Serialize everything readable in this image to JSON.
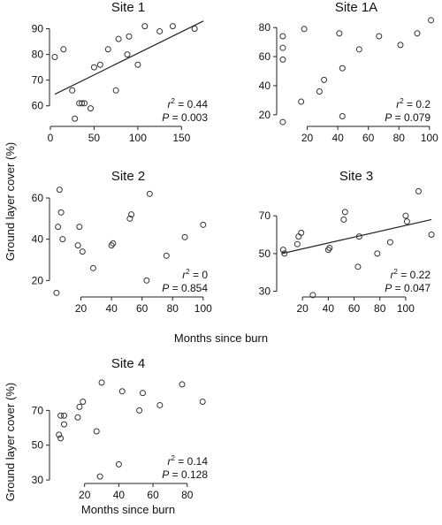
{
  "figure": {
    "xlabel_shared": "Months since burn",
    "xlabel_site4": "Months since burn",
    "ylabel_top": "Ground layer cover (%)",
    "ylabel_bottom": "Ground layer cover (%)"
  },
  "chart_data": [
    {
      "type": "scatter",
      "title": "Site 1",
      "xlim": [
        0,
        180
      ],
      "ylim": [
        52,
        95
      ],
      "xticks": [
        "0",
        "50",
        "100",
        "150"
      ],
      "xtick_values": [
        0,
        50,
        100,
        150
      ],
      "yticks": [
        "60",
        "70",
        "80",
        "90"
      ],
      "ytick_values": [
        60,
        70,
        80,
        90
      ],
      "r2_label": "r",
      "r2_sup": "2",
      "r2_value": " = 0.44",
      "p_label": "P",
      "p_value": " = 0.003",
      "trendline": true,
      "fit": [
        [
          5,
          64.5
        ],
        [
          175,
          93
        ]
      ],
      "points": [
        [
          5,
          79
        ],
        [
          15,
          82
        ],
        [
          25,
          66
        ],
        [
          28,
          55
        ],
        [
          33,
          61
        ],
        [
          36,
          61
        ],
        [
          39,
          61
        ],
        [
          46,
          59
        ],
        [
          50,
          75
        ],
        [
          57,
          76
        ],
        [
          66,
          82
        ],
        [
          75,
          66
        ],
        [
          78,
          86
        ],
        [
          88,
          80
        ],
        [
          90,
          87
        ],
        [
          100,
          76
        ],
        [
          108,
          91
        ],
        [
          125,
          89
        ],
        [
          140,
          91
        ],
        [
          165,
          90
        ]
      ]
    },
    {
      "type": "scatter",
      "title": "Site 1A",
      "xlim": [
        0,
        103
      ],
      "ylim": [
        12,
        88
      ],
      "xticks": [
        "20",
        "40",
        "60",
        "80",
        "100"
      ],
      "xtick_values": [
        20,
        40,
        60,
        80,
        100
      ],
      "yticks": [
        "20",
        "40",
        "60",
        "80"
      ],
      "ytick_values": [
        20,
        40,
        60,
        80
      ],
      "r2_label": "r",
      "r2_sup": "2",
      "r2_value": " = 0.2",
      "p_label": "P",
      "p_value": " = 0.079",
      "trendline": false,
      "points": [
        [
          4,
          74
        ],
        [
          4,
          66
        ],
        [
          4,
          58
        ],
        [
          4,
          15
        ],
        [
          16,
          29
        ],
        [
          18,
          79
        ],
        [
          28,
          36
        ],
        [
          31,
          44
        ],
        [
          41,
          76
        ],
        [
          43,
          19
        ],
        [
          43,
          52
        ],
        [
          54,
          65
        ],
        [
          67,
          74
        ],
        [
          81,
          68
        ],
        [
          92,
          76
        ],
        [
          101,
          85
        ]
      ]
    },
    {
      "type": "scatter",
      "title": "Site 2",
      "xlim": [
        0,
        103
      ],
      "ylim": [
        12,
        66
      ],
      "xticks": [
        "20",
        "40",
        "60",
        "80",
        "100"
      ],
      "xtick_values": [
        20,
        40,
        60,
        80,
        100
      ],
      "yticks": [
        "20",
        "40",
        "60"
      ],
      "ytick_values": [
        20,
        40,
        60
      ],
      "r2_label": "r",
      "r2_sup": "2",
      "r2_value": " = 0",
      "p_label": "P",
      "p_value": " = 0.854",
      "trendline": false,
      "points": [
        [
          4,
          14
        ],
        [
          5,
          46
        ],
        [
          6,
          64
        ],
        [
          7,
          53
        ],
        [
          8,
          40
        ],
        [
          18,
          37
        ],
        [
          19,
          46
        ],
        [
          21,
          34
        ],
        [
          28,
          26
        ],
        [
          40,
          37
        ],
        [
          41,
          38
        ],
        [
          52,
          50
        ],
        [
          53,
          52
        ],
        [
          63,
          20
        ],
        [
          65,
          62
        ],
        [
          76,
          32
        ],
        [
          88,
          41
        ],
        [
          100,
          47
        ]
      ]
    },
    {
      "type": "scatter",
      "title": "Site 3",
      "xlim": [
        0,
        122
      ],
      "ylim": [
        27,
        86
      ],
      "xticks": [
        "20",
        "40",
        "60",
        "80",
        "100"
      ],
      "xtick_values": [
        20,
        40,
        60,
        80,
        100
      ],
      "yticks": [
        "30",
        "50",
        "70"
      ],
      "ytick_values": [
        30,
        50,
        70
      ],
      "r2_label": "r",
      "r2_sup": "2",
      "r2_value": " = 0.22",
      "p_label": "P",
      "p_value": " = 0.047",
      "trendline": true,
      "fit": [
        [
          4,
          50
        ],
        [
          120,
          68
        ]
      ],
      "points": [
        [
          5,
          52
        ],
        [
          6,
          50
        ],
        [
          16,
          55
        ],
        [
          17,
          59
        ],
        [
          19,
          61
        ],
        [
          28,
          28
        ],
        [
          40,
          52
        ],
        [
          41,
          53
        ],
        [
          52,
          68
        ],
        [
          53,
          72
        ],
        [
          63,
          43
        ],
        [
          64,
          59
        ],
        [
          78,
          50
        ],
        [
          88,
          56
        ],
        [
          100,
          70
        ],
        [
          101,
          67
        ],
        [
          110,
          83
        ],
        [
          120,
          60
        ]
      ]
    },
    {
      "type": "scatter",
      "title": "Site 4",
      "xlim": [
        0,
        92
      ],
      "ylim": [
        28,
        90
      ],
      "xticks": [
        "20",
        "40",
        "60",
        "80"
      ],
      "xtick_values": [
        20,
        40,
        60,
        80
      ],
      "yticks": [
        "30",
        "50",
        "70"
      ],
      "ytick_values": [
        30,
        50,
        70
      ],
      "r2_label": "r",
      "r2_sup": "2",
      "r2_value": " = 0.14",
      "p_label": "P",
      "p_value": " = 0.128",
      "trendline": false,
      "points": [
        [
          5,
          56
        ],
        [
          6,
          54
        ],
        [
          6,
          67
        ],
        [
          8,
          62
        ],
        [
          8,
          67
        ],
        [
          16,
          66
        ],
        [
          17,
          72
        ],
        [
          19,
          75
        ],
        [
          27,
          58
        ],
        [
          29,
          32
        ],
        [
          30,
          86
        ],
        [
          40,
          39
        ],
        [
          42,
          81
        ],
        [
          52,
          70
        ],
        [
          54,
          80
        ],
        [
          64,
          73
        ],
        [
          77,
          85
        ],
        [
          89,
          75
        ]
      ]
    }
  ]
}
